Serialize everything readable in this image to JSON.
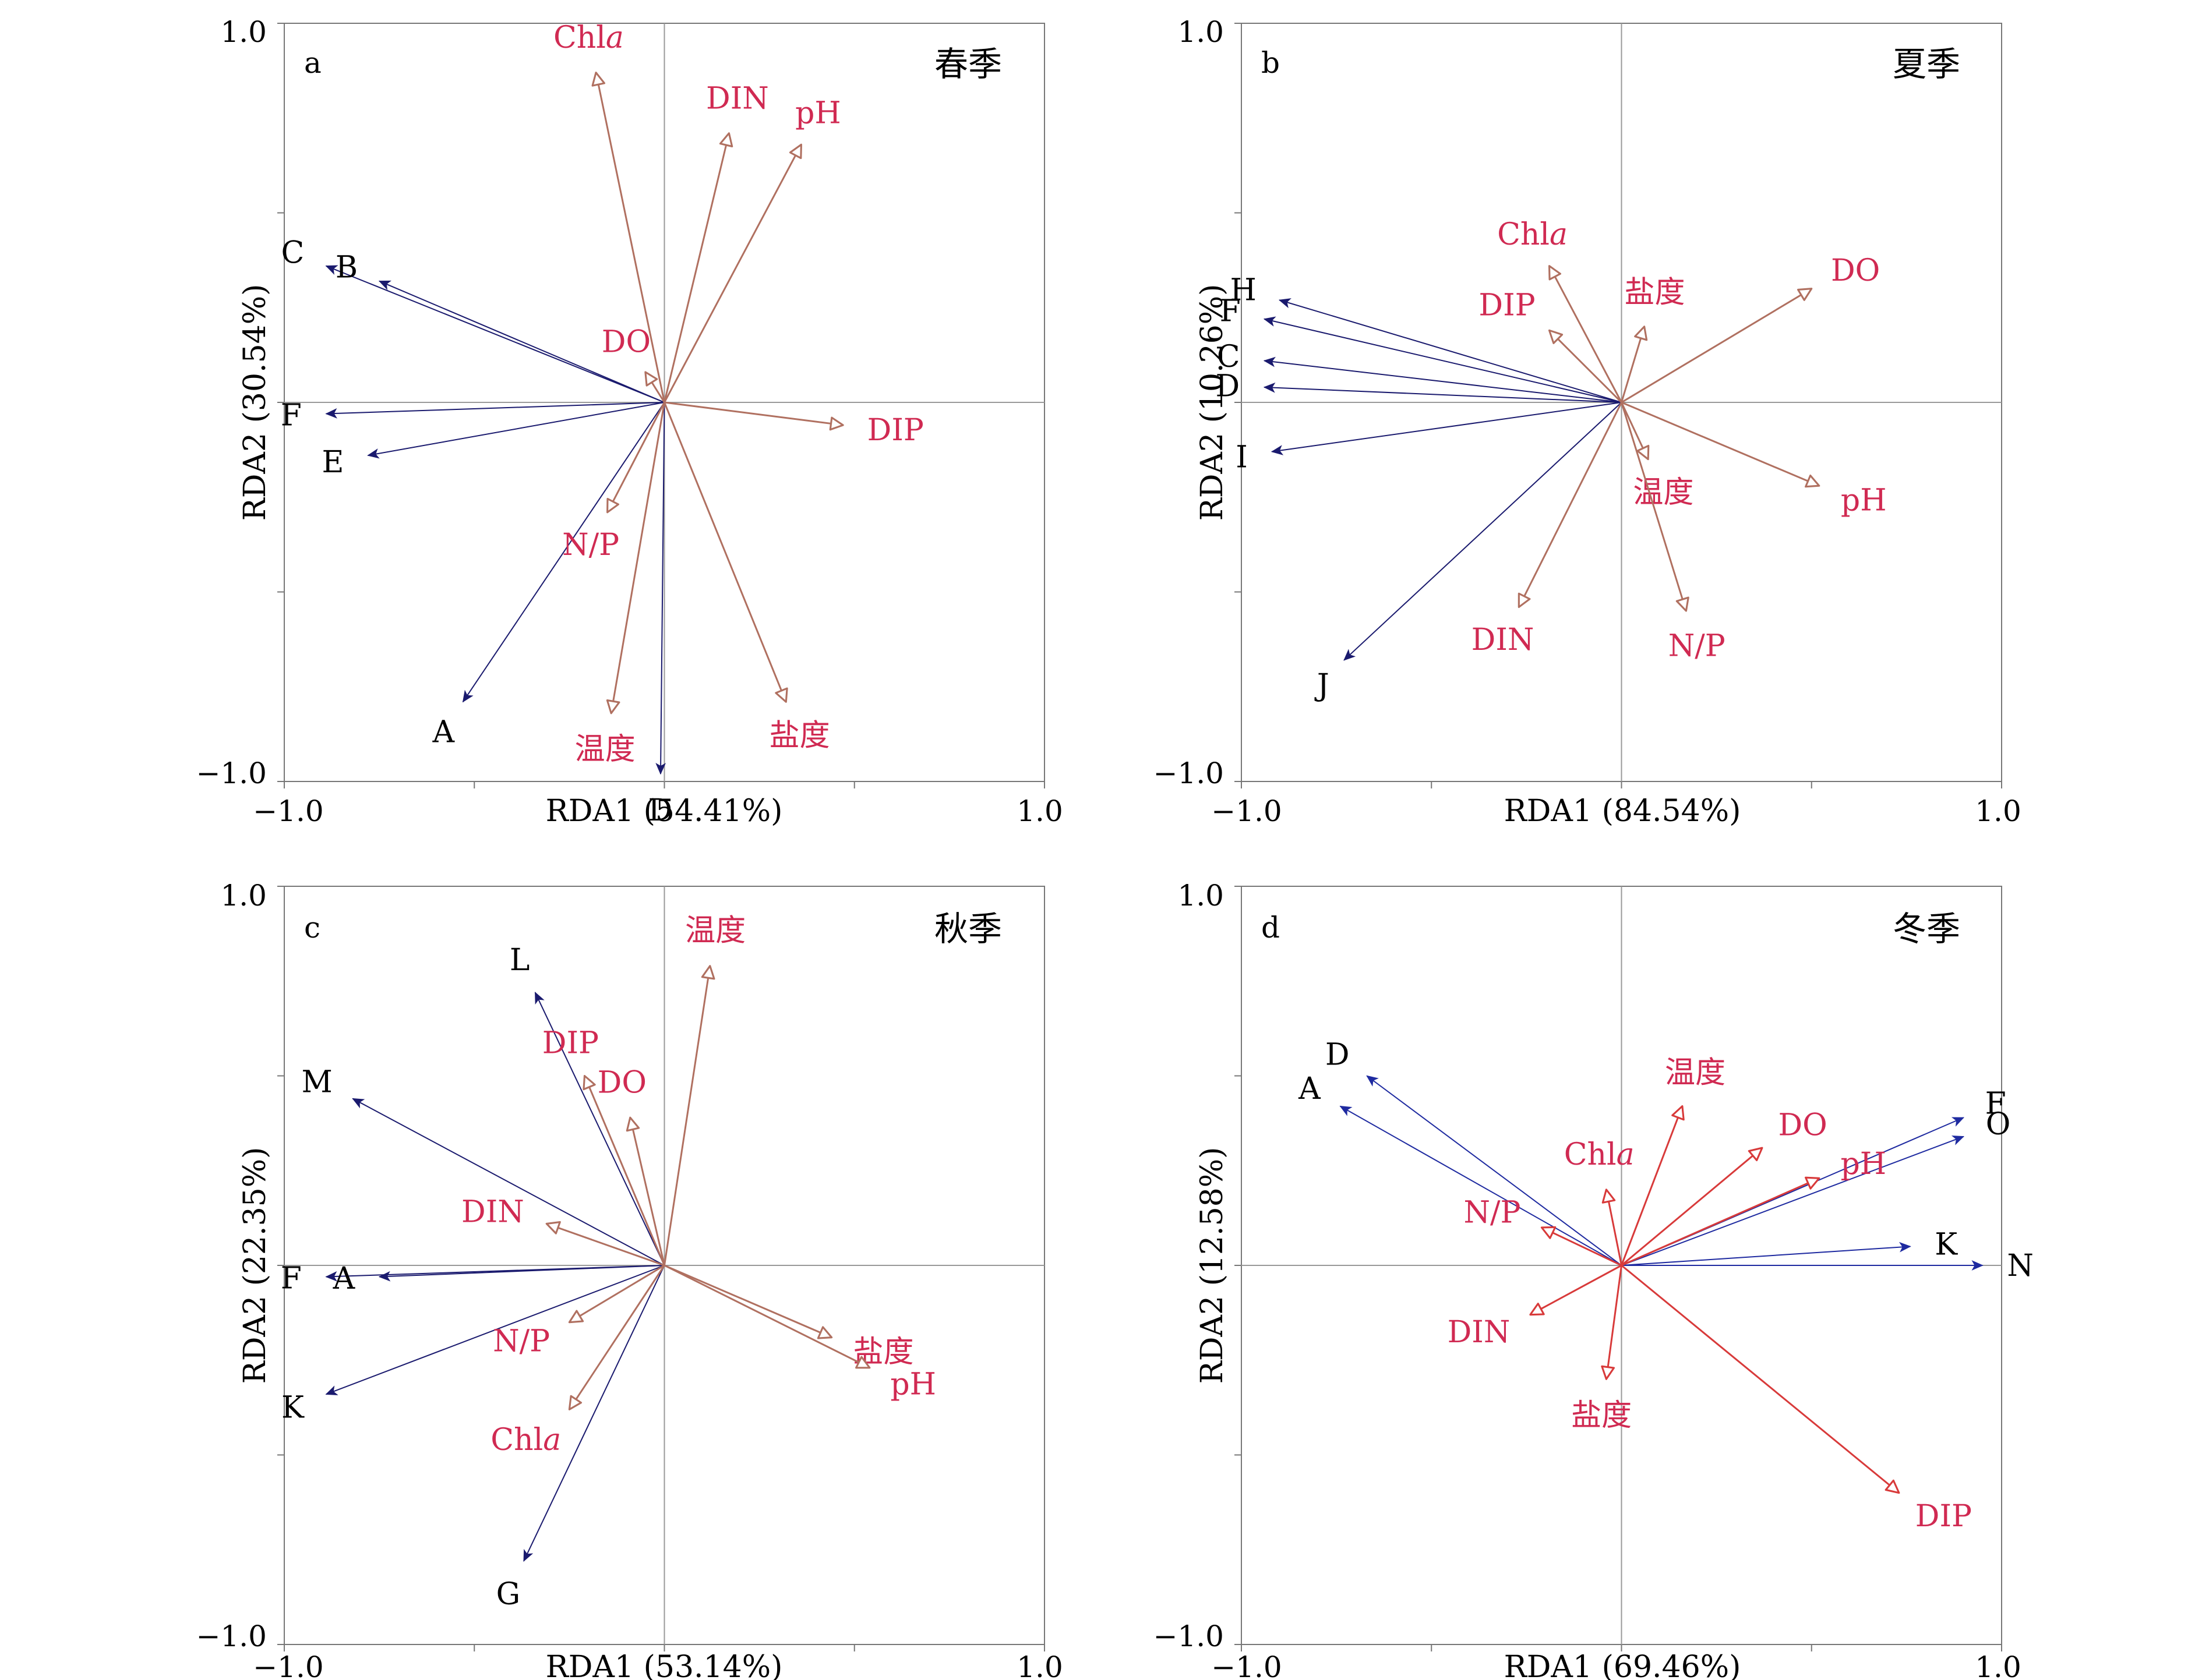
{
  "figure": {
    "palette": {
      "env": "#d02a52",
      "env_arrow": "#b07060",
      "species": "#000000",
      "species_arrow": "#1a1a6e",
      "axis": "#555555",
      "panel_d_env_arrow": "#d83a3a",
      "panel_d_species_arrow": "#1e2aa0"
    }
  },
  "chart_data": [
    {
      "type": "scatter",
      "panel": "a",
      "season": "春季",
      "xlabel": "RDA1 (54.41%)",
      "ylabel": "RDA2 (30.54%)",
      "xlim": [
        -1.0,
        1.0
      ],
      "ylim": [
        -1.0,
        1.0
      ],
      "xticks": [
        "−1.0",
        "1.0"
      ],
      "yticks": [
        "1.0",
        "−1.0"
      ],
      "environment": [
        {
          "label": "Chl",
          "label_italic": "a",
          "x": -0.18,
          "y": 0.87
        },
        {
          "label": "DIN",
          "x": 0.17,
          "y": 0.71
        },
        {
          "label": "pH",
          "x": 0.36,
          "y": 0.68
        },
        {
          "label": "DO",
          "x": -0.05,
          "y": 0.08
        },
        {
          "label": "DIP",
          "x": 0.47,
          "y": -0.06
        },
        {
          "label": "N/P",
          "x": -0.15,
          "y": -0.29
        },
        {
          "label": "温度",
          "x": -0.14,
          "y": -0.82
        },
        {
          "label": "盐度",
          "x": 0.32,
          "y": -0.79
        }
      ],
      "species": [
        {
          "label": "C",
          "x": -0.89,
          "y": 0.36
        },
        {
          "label": "B",
          "x": -0.75,
          "y": 0.32
        },
        {
          "label": "F",
          "x": -0.89,
          "y": -0.03
        },
        {
          "label": "E",
          "x": -0.78,
          "y": -0.14
        },
        {
          "label": "A",
          "x": -0.53,
          "y": -0.79
        },
        {
          "label": "D",
          "x": -0.01,
          "y": -0.98
        }
      ]
    },
    {
      "type": "scatter",
      "panel": "b",
      "season": "夏季",
      "xlabel": "RDA1 (84.54%)",
      "ylabel": "RDA2 (10.26%)",
      "xlim": [
        -1.0,
        1.0
      ],
      "ylim": [
        -1.0,
        1.0
      ],
      "xticks": [
        "−1.0",
        "1.0"
      ],
      "yticks": [
        "1.0",
        "−1.0"
      ],
      "environment": [
        {
          "label": "Chl",
          "label_italic": "a",
          "x": -0.19,
          "y": 0.36
        },
        {
          "label": "DIP",
          "x": -0.19,
          "y": 0.19
        },
        {
          "label": "盐度",
          "x": 0.06,
          "y": 0.2
        },
        {
          "label": "DO",
          "x": 0.5,
          "y": 0.3
        },
        {
          "label": "温度",
          "x": 0.07,
          "y": -0.15
        },
        {
          "label": "pH",
          "x": 0.52,
          "y": -0.22
        },
        {
          "label": "DIN",
          "x": -0.27,
          "y": -0.54
        },
        {
          "label": "N/P",
          "x": 0.17,
          "y": -0.55
        }
      ],
      "species": [
        {
          "label": "H",
          "x": -0.9,
          "y": 0.27
        },
        {
          "label": "F",
          "x": -0.94,
          "y": 0.22
        },
        {
          "label": "C",
          "x": -0.94,
          "y": 0.11
        },
        {
          "label": "D",
          "x": -0.94,
          "y": 0.04
        },
        {
          "label": "I",
          "x": -0.92,
          "y": -0.13
        },
        {
          "label": "J",
          "x": -0.73,
          "y": -0.68
        }
      ]
    },
    {
      "type": "scatter",
      "panel": "c",
      "season": "秋季",
      "xlabel": "RDA1 (53.14%)",
      "ylabel": "RDA2 (22.35%)",
      "xlim": [
        -1.0,
        1.0
      ],
      "ylim": [
        -1.0,
        1.0
      ],
      "xticks": [
        "−1.0",
        "1.0"
      ],
      "yticks": [
        "1.0",
        "−1.0"
      ],
      "environment": [
        {
          "label": "温度",
          "x": 0.12,
          "y": 0.79
        },
        {
          "label": "DIP",
          "x": -0.21,
          "y": 0.5
        },
        {
          "label": "DO",
          "x": -0.09,
          "y": 0.39
        },
        {
          "label": "DIN",
          "x": -0.31,
          "y": 0.11
        },
        {
          "label": "N/P",
          "x": -0.25,
          "y": -0.15
        },
        {
          "label": "Chl",
          "label_italic": "a",
          "x": -0.25,
          "y": -0.38
        },
        {
          "label": "盐度",
          "x": 0.44,
          "y": -0.19
        },
        {
          "label": "pH",
          "x": 0.54,
          "y": -0.27
        }
      ],
      "species": [
        {
          "label": "L",
          "x": -0.34,
          "y": 0.72
        },
        {
          "label": "M",
          "x": -0.82,
          "y": 0.44
        },
        {
          "label": "F",
          "x": -0.89,
          "y": -0.03
        },
        {
          "label": "A",
          "x": -0.75,
          "y": -0.03
        },
        {
          "label": "K",
          "x": -0.89,
          "y": -0.34
        },
        {
          "label": "G",
          "x": -0.37,
          "y": -0.78
        }
      ]
    },
    {
      "type": "scatter",
      "panel": "d",
      "season": "冬季",
      "xlabel": "RDA1 (69.46%)",
      "ylabel": "RDA2 (12.58%)",
      "xlim": [
        -1.0,
        1.0
      ],
      "ylim": [
        -1.0,
        1.0
      ],
      "xticks": [
        "−1.0",
        "1.0"
      ],
      "yticks": [
        "1.0",
        "−1.0"
      ],
      "environment": [
        {
          "label": "温度",
          "x": 0.16,
          "y": 0.42
        },
        {
          "label": "DO",
          "x": 0.37,
          "y": 0.31
        },
        {
          "label": "Chl",
          "label_italic": "a",
          "x": -0.04,
          "y": 0.2
        },
        {
          "label": "N/P",
          "x": -0.21,
          "y": 0.1
        },
        {
          "label": "pH",
          "x": 0.52,
          "y": 0.23
        },
        {
          "label": "DIN",
          "x": -0.24,
          "y": -0.13
        },
        {
          "label": "盐度",
          "x": -0.04,
          "y": -0.3
        },
        {
          "label": "DIP",
          "x": 0.73,
          "y": -0.6
        }
      ],
      "species": [
        {
          "label": "D",
          "x": -0.67,
          "y": 0.5
        },
        {
          "label": "A",
          "x": -0.74,
          "y": 0.42
        },
        {
          "label": "F",
          "x": 0.9,
          "y": 0.39
        },
        {
          "label": "O",
          "x": 0.9,
          "y": 0.34
        },
        {
          "label": "K",
          "x": 0.76,
          "y": 0.05
        },
        {
          "label": "N",
          "x": 0.95,
          "y": 0.0
        }
      ]
    }
  ]
}
